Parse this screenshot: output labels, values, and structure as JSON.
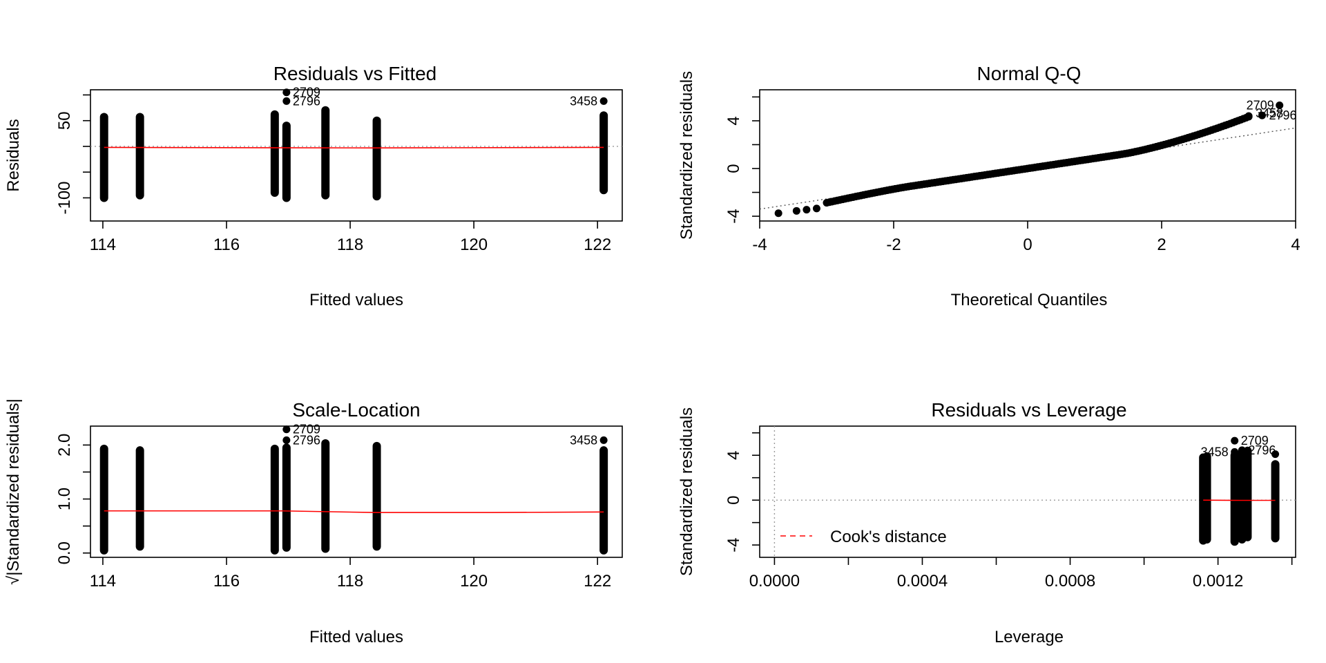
{
  "colors": {
    "points": "#000000",
    "smooth": "#ff0000",
    "reference": "#999999"
  },
  "chart_data": [
    {
      "id": "rvf",
      "type": "scatter",
      "title": "Residuals vs Fitted",
      "xlabel": "Fitted values",
      "ylabel": "Residuals",
      "xlim": [
        113.8,
        122.4
      ],
      "ylim": [
        -145,
        110
      ],
      "xticks": [
        114,
        116,
        118,
        120,
        122
      ],
      "yticks": [
        -100,
        50
      ],
      "yticks_minor": [
        -50,
        0,
        100
      ],
      "columns": [
        {
          "x": 114.02,
          "ymin": -100,
          "ymax": 57
        },
        {
          "x": 114.6,
          "ymin": -95,
          "ymax": 57
        },
        {
          "x": 116.78,
          "ymin": -90,
          "ymax": 62
        },
        {
          "x": 116.97,
          "ymin": -100,
          "ymax": 40
        },
        {
          "x": 117.6,
          "ymin": -95,
          "ymax": 70
        },
        {
          "x": 118.43,
          "ymin": -97,
          "ymax": 50
        },
        {
          "x": 122.1,
          "ymin": -85,
          "ymax": 60
        }
      ],
      "outliers": [
        {
          "x": 116.97,
          "y": 105,
          "label": "2709"
        },
        {
          "x": 116.97,
          "y": 88,
          "label": "2796"
        },
        {
          "x": 122.1,
          "y": 88,
          "label": "3458"
        }
      ],
      "reference_line": 0,
      "smooth": [
        [
          114.02,
          -2
        ],
        [
          118.4,
          -3
        ],
        [
          122.1,
          -2
        ]
      ]
    },
    {
      "id": "qq",
      "type": "scatter",
      "title": "Normal Q-Q",
      "xlabel": "Theoretical Quantiles",
      "ylabel": "Standardized residuals",
      "xlim": [
        -4,
        4
      ],
      "ylim": [
        -4.4,
        6.6
      ],
      "xticks": [
        -4,
        -2,
        0,
        2,
        4
      ],
      "yticks": [
        -4,
        0,
        4
      ],
      "yticks_minor": [
        -2,
        2,
        6
      ],
      "reference_line": {
        "slope": 0.85,
        "intercept": 0
      },
      "outliers": [
        {
          "x": 3.76,
          "y": 5.3,
          "label": "2709"
        },
        {
          "x": 3.5,
          "y": 4.45,
          "label": "2796"
        },
        {
          "x": 3.3,
          "y": 4.4,
          "label": "3458"
        }
      ]
    },
    {
      "id": "sl",
      "type": "scatter",
      "title": "Scale-Location",
      "xlabel": "Fitted values",
      "ylabel": "√|Standardized residuals|",
      "xlim": [
        113.8,
        122.4
      ],
      "ylim": [
        -0.08,
        2.35
      ],
      "xticks": [
        114,
        116,
        118,
        120,
        122
      ],
      "yticks": [
        0.0,
        1.0,
        2.0
      ],
      "yticks_minor": [
        0.5,
        1.5
      ],
      "columns": [
        {
          "x": 114.02,
          "ymin": 0.05,
          "ymax": 1.93
        },
        {
          "x": 114.6,
          "ymin": 0.12,
          "ymax": 1.9
        },
        {
          "x": 116.78,
          "ymin": 0.05,
          "ymax": 1.93
        },
        {
          "x": 116.97,
          "ymin": 0.1,
          "ymax": 1.95
        },
        {
          "x": 117.6,
          "ymin": 0.08,
          "ymax": 2.03
        },
        {
          "x": 118.43,
          "ymin": 0.12,
          "ymax": 1.98
        },
        {
          "x": 122.1,
          "ymin": 0.05,
          "ymax": 1.9
        }
      ],
      "outliers": [
        {
          "x": 116.97,
          "y": 2.29,
          "label": "2709"
        },
        {
          "x": 116.97,
          "y": 2.09,
          "label": "2796"
        },
        {
          "x": 122.1,
          "y": 2.09,
          "label": "3458"
        }
      ],
      "smooth": [
        [
          114.02,
          0.78
        ],
        [
          116.9,
          0.78
        ],
        [
          118.4,
          0.75
        ],
        [
          120.3,
          0.75
        ],
        [
          122.1,
          0.76
        ]
      ]
    },
    {
      "id": "rvl",
      "type": "scatter",
      "title": "Residuals vs Leverage",
      "xlabel": "Leverage",
      "ylabel": "Standardized residuals",
      "xlim": [
        -4e-05,
        0.00141
      ],
      "ylim": [
        -5.1,
        6.6
      ],
      "xticks": [
        0.0,
        0.0004,
        0.0008,
        0.0012
      ],
      "xtick_labels": [
        "0.0000",
        "0.0004",
        "0.0008",
        "0.0012"
      ],
      "xticks_minor": [
        0.0002,
        0.0006,
        0.001,
        0.0014
      ],
      "yticks": [
        -4,
        0,
        4
      ],
      "yticks_minor": [
        -2,
        2,
        6
      ],
      "columns": [
        {
          "x": 0.00116,
          "ymin": -3.6,
          "ymax": 3.8
        },
        {
          "x": 0.00117,
          "ymin": -3.5,
          "ymax": 3.9
        },
        {
          "x": 0.001245,
          "ymin": -3.7,
          "ymax": 4.0
        },
        {
          "x": 0.001265,
          "ymin": -3.5,
          "ymax": 4.2
        },
        {
          "x": 0.00128,
          "ymin": -3.3,
          "ymax": 4.4
        },
        {
          "x": 0.001355,
          "ymin": -3.4,
          "ymax": 3.2
        }
      ],
      "outliers": [
        {
          "x": 0.001245,
          "y": 5.3,
          "label": "2709"
        },
        {
          "x": 0.001265,
          "y": 4.45,
          "label": "2796"
        },
        {
          "x": 0.001245,
          "y": 4.3,
          "label": "3458"
        }
      ],
      "extra_points": [
        {
          "x": 0.001355,
          "y": 4.1
        }
      ],
      "smooth": [
        [
          0.00116,
          0.0
        ],
        [
          0.00126,
          -0.02
        ],
        [
          0.001355,
          -0.02
        ]
      ],
      "legend": {
        "label": "Cook's distance",
        "position": "bottom-left"
      }
    }
  ]
}
